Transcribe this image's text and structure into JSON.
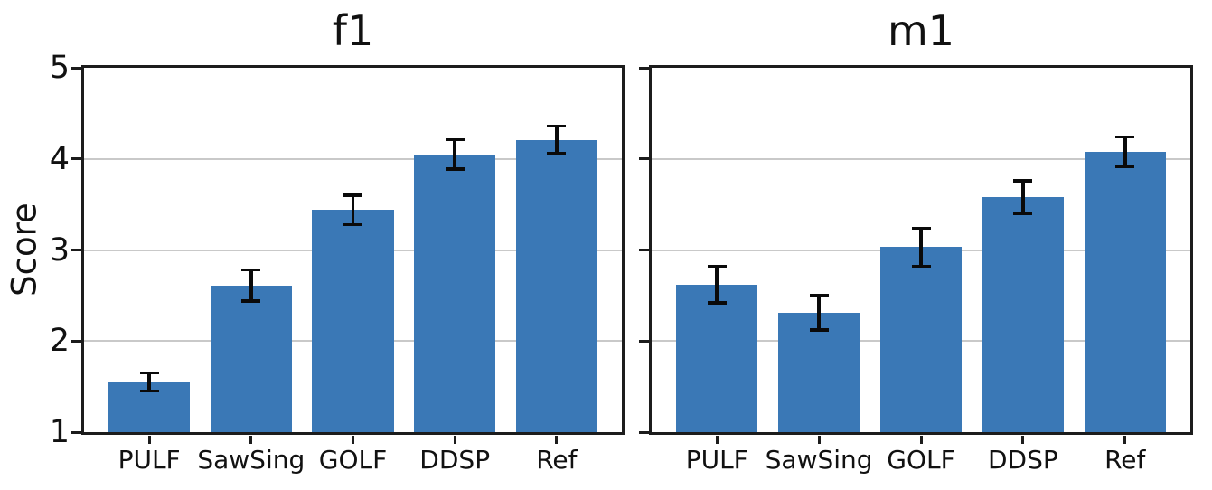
{
  "figure": {
    "ylabel": "Score",
    "background_color": "#ffffff",
    "bar_color": "#3a78b6",
    "grid_color": "#c9c9c9",
    "spine_color": "#1c1c1c",
    "errorbar_color": "#0a0a0a",
    "text_color": "#111111"
  },
  "chart_data": [
    {
      "type": "bar",
      "title": "f1",
      "ylabel": "Score",
      "categories": [
        "PULF",
        "SawSing",
        "GOLF",
        "DDSP",
        "Ref"
      ],
      "values": [
        1.55,
        2.61,
        3.44,
        4.05,
        4.21
      ],
      "errors": [
        0.1,
        0.17,
        0.16,
        0.16,
        0.15
      ],
      "ylim": [
        1,
        5
      ],
      "yticks": [
        1,
        2,
        3,
        4,
        5
      ],
      "yticklabels": [
        "1",
        "2",
        "3",
        "4",
        "5"
      ],
      "grid": true,
      "legend": null
    },
    {
      "type": "bar",
      "title": "m1",
      "ylabel": "",
      "categories": [
        "PULF",
        "SawSing",
        "GOLF",
        "DDSP",
        "Ref"
      ],
      "values": [
        2.62,
        2.31,
        3.03,
        3.58,
        4.08
      ],
      "errors": [
        0.2,
        0.19,
        0.21,
        0.18,
        0.16
      ],
      "ylim": [
        1,
        5
      ],
      "yticks": [
        1,
        2,
        3,
        4,
        5
      ],
      "yticklabels": [
        "1",
        "2",
        "3",
        "4",
        "5"
      ],
      "grid": true,
      "legend": null
    }
  ]
}
